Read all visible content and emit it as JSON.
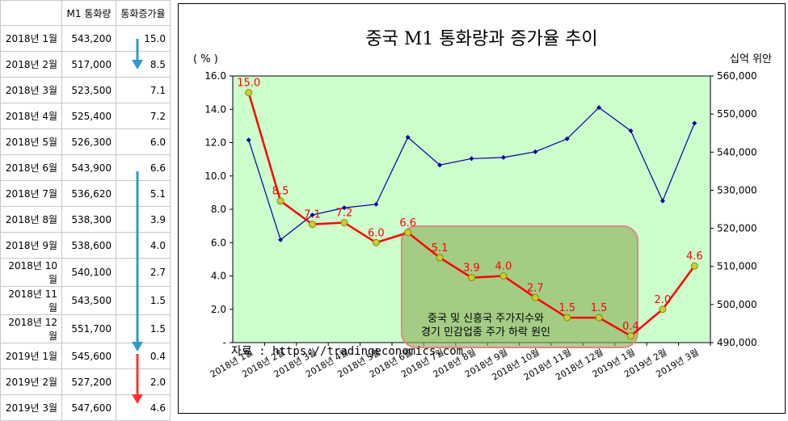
{
  "table": {
    "headers": [
      "",
      "M1 통화량",
      "통화증가율"
    ],
    "rows": [
      {
        "month": "2018년 1월",
        "m1": "543,200",
        "rate": "15.0"
      },
      {
        "month": "2018년 2월",
        "m1": "517,000",
        "rate": "8.5"
      },
      {
        "month": "2018년 3월",
        "m1": "523,500",
        "rate": "7.1"
      },
      {
        "month": "2018년 4월",
        "m1": "525,400",
        "rate": "7.2"
      },
      {
        "month": "2018년 5월",
        "m1": "526,300",
        "rate": "6.0"
      },
      {
        "month": "2018년 6월",
        "m1": "543,900",
        "rate": "6.6"
      },
      {
        "month": "2018년 7월",
        "m1": "536,620",
        "rate": "5.1"
      },
      {
        "month": "2018년 8월",
        "m1": "538,300",
        "rate": "3.9"
      },
      {
        "month": "2018년 9월",
        "m1": "538,600",
        "rate": "4.0"
      },
      {
        "month": "2018년 10월",
        "m1": "540,100",
        "rate": "2.7"
      },
      {
        "month": "2018년 11월",
        "m1": "543,500",
        "rate": "1.5"
      },
      {
        "month": "2018년 12월",
        "m1": "551,700",
        "rate": "1.5"
      },
      {
        "month": "2019년 1월",
        "m1": "545,600",
        "rate": "0.4"
      },
      {
        "month": "2019년 2월",
        "m1": "527,200",
        "rate": "2.0"
      },
      {
        "month": "2019년 3월",
        "m1": "547,600",
        "rate": "4.6"
      }
    ]
  },
  "colors": {
    "plot_bg": "#ccffcc",
    "rate_line": "#ff0000",
    "rate_marker": "#cccc33",
    "m1_line": "#000099",
    "highlight_box": "#88aa55",
    "highlight_border": "#dd8888",
    "arrow_blue": "#3399cc",
    "arrow_red": "#ff3333"
  },
  "chart_data": {
    "type": "line",
    "title": "중국 M1 통화량과 증가율 추이",
    "y_left_label": "( % )",
    "y_right_label": "십억 위안",
    "ylim_left": [
      0,
      16
    ],
    "ylim_right": [
      490000,
      560000
    ],
    "y_left_ticks": [
      "-",
      "2.0",
      "4.0",
      "6.0",
      "8.0",
      "10.0",
      "12.0",
      "14.0",
      "16.0"
    ],
    "y_right_ticks": [
      "490,000",
      "500,000",
      "510,000",
      "520,000",
      "530,000",
      "540,000",
      "550,000",
      "560,000"
    ],
    "categories": [
      "2018년 1월",
      "2018년 2월",
      "2018년 3월",
      "2018년 4월",
      "2018년 5월",
      "2018년 6월",
      "2018년 7월",
      "2018년 8월",
      "2018년 9월",
      "2018년 10월",
      "2018년 11월",
      "2018년 12월",
      "2019년 1월",
      "2019년 2월",
      "2019년 3월"
    ],
    "series": [
      {
        "name": "통화증가율",
        "axis": "left",
        "values": [
          15.0,
          8.5,
          7.1,
          7.2,
          6.0,
          6.6,
          5.1,
          3.9,
          4.0,
          2.7,
          1.5,
          1.5,
          0.4,
          2.0,
          4.6
        ],
        "labels": [
          "15.0",
          "8.5",
          "7.1",
          "7.2",
          "6.0",
          "6.6",
          "5.1",
          "3.9",
          "4.0",
          "2.7",
          "1.5",
          "1.5",
          "0.4",
          "2.0",
          "4.6"
        ]
      },
      {
        "name": "M1 통화량",
        "axis": "right",
        "values": [
          543200,
          517000,
          523500,
          525400,
          526300,
          543900,
          536620,
          538300,
          538600,
          540100,
          543500,
          551700,
          545600,
          527200,
          547600
        ]
      }
    ],
    "annotation_lines": [
      "중국 및 신흥국 주가지수와",
      "경기 민감업종 주가 하락 원인"
    ],
    "source": "자료 : https://tradingeconomics.com"
  }
}
